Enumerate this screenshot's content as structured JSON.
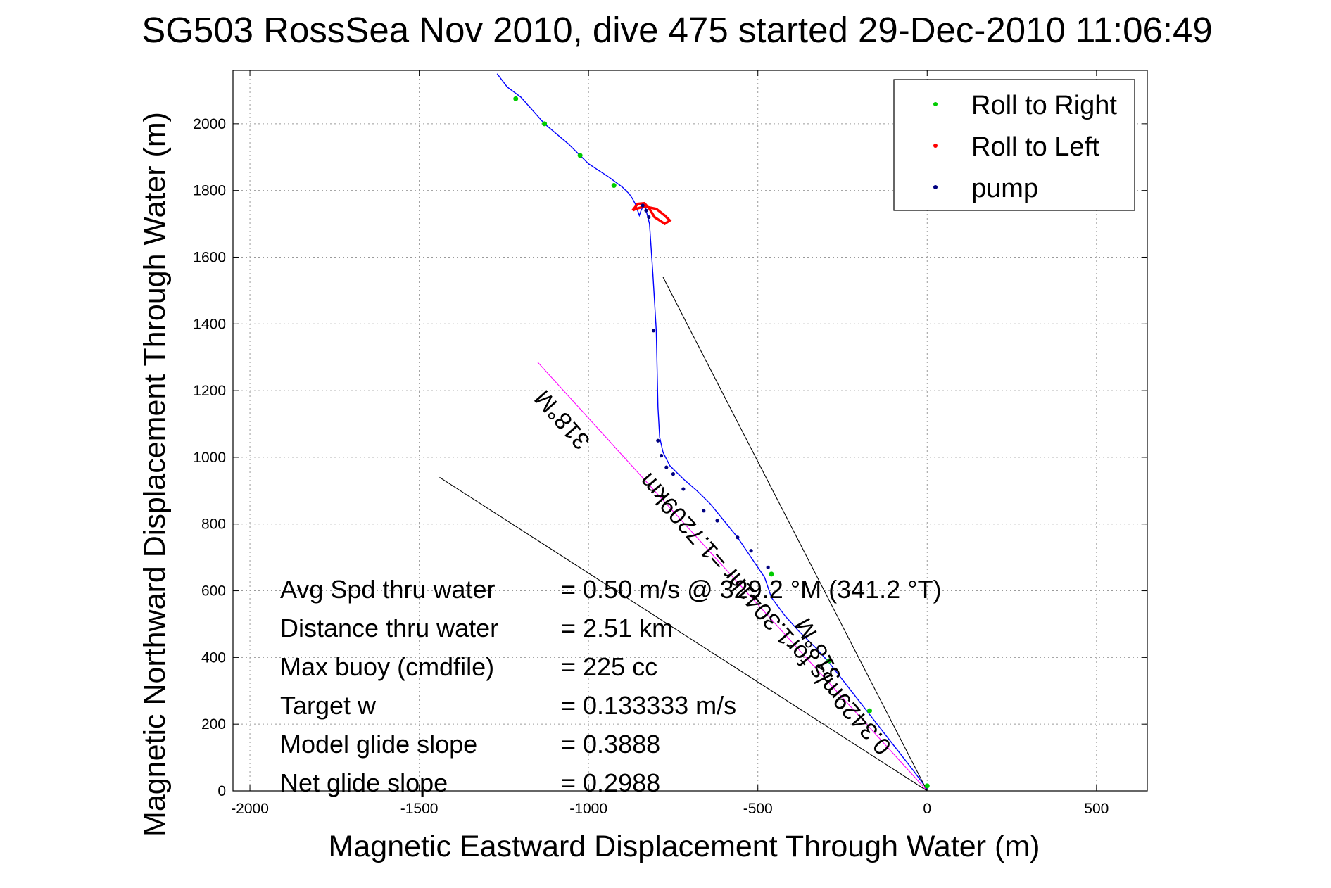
{
  "chart_data": {
    "type": "line",
    "title": "SG503 RossSea Nov 2010, dive 475 started 29-Dec-2010 11:06:49",
    "xlabel": "Magnetic Eastward Displacement Through Water (m)",
    "ylabel": "Magnetic Northward Displacement Through Water (m)",
    "xlim": [
      -2050,
      650
    ],
    "ylim": [
      0,
      2160
    ],
    "xticks": [
      -2000,
      -1500,
      -1000,
      -500,
      0,
      500
    ],
    "yticks": [
      0,
      200,
      400,
      600,
      800,
      1000,
      1200,
      1400,
      1600,
      1800,
      2000
    ],
    "grid": true,
    "legend": {
      "placement": "top-right",
      "entries": [
        {
          "label": "Roll to Right",
          "color": "#00cc00"
        },
        {
          "label": "Roll to Left",
          "color": "#ff0000"
        },
        {
          "label": "pump",
          "color": "#000080"
        }
      ]
    },
    "series": [
      {
        "color": "#0000ff",
        "x": [
          0,
          -40,
          -90,
          -140,
          -190,
          -240,
          -290,
          -330,
          -380,
          -420,
          -460,
          -480,
          -520,
          -560,
          -600,
          -640,
          -680,
          -720,
          -760,
          -780,
          -790,
          -795,
          -800,
          -810,
          -820,
          -835,
          -845,
          -850,
          -862,
          -870,
          -880,
          -900,
          -940,
          -1000,
          -1020,
          -1060,
          -1130,
          -1200,
          -1240,
          -1270
        ],
        "y": [
          5,
          60,
          125,
          190,
          255,
          320,
          385,
          430,
          480,
          525,
          580,
          640,
          700,
          760,
          810,
          860,
          900,
          935,
          975,
          1015,
          1060,
          1150,
          1380,
          1550,
          1700,
          1760,
          1740,
          1725,
          1760,
          1775,
          1790,
          1810,
          1840,
          1880,
          1900,
          1940,
          2000,
          2080,
          2110,
          2150
        ]
      },
      {
        "color": "#ff00ff",
        "x": [
          0,
          -1150
        ],
        "y": [
          0,
          1285
        ]
      },
      {
        "color": "#000000",
        "x": [
          0,
          -780
        ],
        "y": [
          0,
          1540
        ]
      },
      {
        "color": "#000000",
        "x": [
          0,
          -1440
        ],
        "y": [
          0,
          940
        ]
      }
    ],
    "loop": {
      "x": [
        -870,
        -855,
        -835,
        -820,
        -805,
        -790,
        -775,
        -760,
        -775,
        -800,
        -835,
        -860,
        -870
      ],
      "y": [
        1740,
        1760,
        1762,
        1745,
        1720,
        1710,
        1700,
        1710,
        1725,
        1745,
        1752,
        1745,
        1740
      ]
    },
    "roll_right_points": {
      "x": [
        -1215,
        -1130,
        -1025,
        -925,
        -460,
        -290,
        -170,
        0
      ],
      "y": [
        2075,
        2000,
        1905,
        1815,
        650,
        390,
        240,
        15
      ]
    },
    "pump_points": {
      "x": [
        -840,
        -830,
        -822,
        -808,
        -795,
        -785,
        -770,
        -750,
        -720,
        -660,
        -620,
        -560,
        -520,
        -470
      ],
      "y": [
        1755,
        1740,
        1720,
        1380,
        1050,
        1005,
        970,
        950,
        905,
        840,
        810,
        760,
        720,
        670
      ]
    },
    "annotations": [
      {
        "label": "Avg Spd thru water",
        "value": "=  0.50 m/s @ 329.2 °M (341.2 °T)"
      },
      {
        "label": "Distance thru water",
        "value": "=  2.51 km"
      },
      {
        "label": "Max buoy (cmdfile)",
        "value": "= 225 cc"
      },
      {
        "label": "Target w",
        "value": "= 0.133333 m/s"
      },
      {
        "label": "Model glide slope",
        "value": "= 0.3888"
      },
      {
        "label": "Net glide slope",
        "value": "= 0.2988"
      }
    ],
    "rotated_labels": [
      "0.3429m/s for1.3041hr =1.7209km",
      "318°M",
      "318°M"
    ]
  }
}
